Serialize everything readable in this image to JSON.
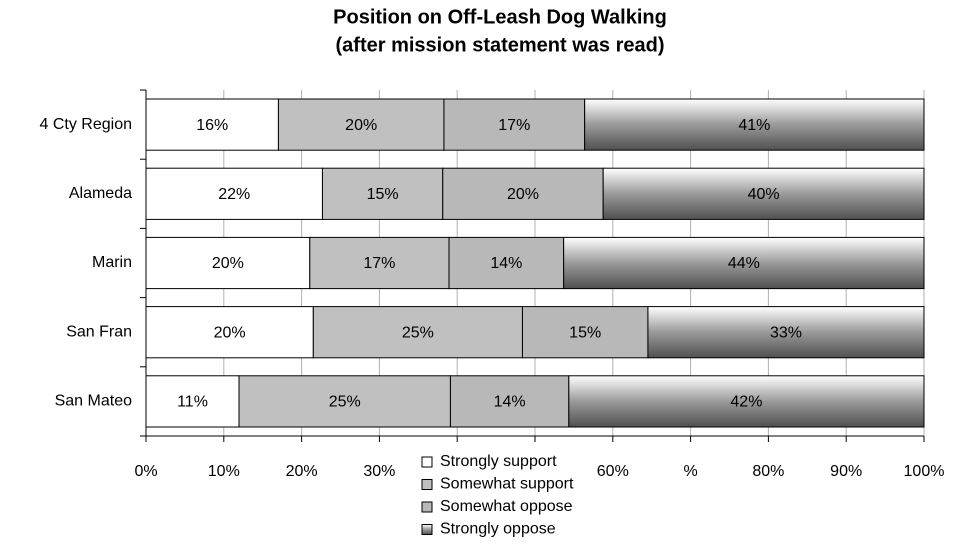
{
  "chart_data": {
    "type": "bar",
    "orientation": "horizontal",
    "stacked": "percent",
    "title": "Position on Off-Leash Dog Walking",
    "subtitle": "(after mission statement was read)",
    "categories": [
      "4 Cty Region",
      "Alameda",
      "Marin",
      "San Fran",
      "San Mateo"
    ],
    "series": [
      {
        "name": "Strongly support",
        "color": "#ffffff",
        "values": [
          16,
          22,
          20,
          20,
          11
        ],
        "value_labels": [
          "16%",
          "22%",
          "20%",
          "20%",
          "11%"
        ]
      },
      {
        "name": "Somewhat support",
        "color": "#c0c0c0",
        "values": [
          20,
          15,
          17,
          25,
          25
        ],
        "value_labels": [
          "20%",
          "15%",
          "17%",
          "25%",
          "25%"
        ]
      },
      {
        "name": "Somewhat oppose",
        "color": "#b8b8b8",
        "values": [
          17,
          20,
          14,
          15,
          14
        ],
        "value_labels": [
          "17%",
          "20%",
          "14%",
          "15%",
          "14%"
        ]
      },
      {
        "name": "Strongly oppose",
        "color": "#9a9a9a",
        "values": [
          41,
          40,
          44,
          33,
          42
        ],
        "value_labels": [
          "41%",
          "40%",
          "44%",
          "33%",
          "42%"
        ]
      }
    ],
    "xlim": [
      0,
      100
    ],
    "xticks": [
      {
        "value": 0,
        "label": "0%"
      },
      {
        "value": 10,
        "label": "10%"
      },
      {
        "value": 20,
        "label": "20%"
      },
      {
        "value": 30,
        "label": "30%"
      },
      {
        "value": 40,
        "label": "40%"
      },
      {
        "value": 50,
        "label": "50%"
      },
      {
        "value": 60,
        "label": "60%"
      },
      {
        "value": 70,
        "label": "%"
      },
      {
        "value": 80,
        "label": "80%"
      },
      {
        "value": 90,
        "label": "90%"
      },
      {
        "value": 100,
        "label": "100%"
      }
    ],
    "grid": true,
    "legend": "bottom"
  }
}
